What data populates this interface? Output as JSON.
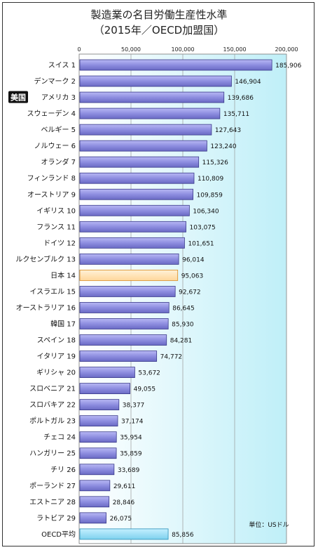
{
  "chart_data": {
    "type": "bar",
    "orientation": "horizontal",
    "title": "製造業の名目労働生産性水準",
    "subtitle": "（2015年／OECD加盟国）",
    "unit_label": "単位：USドル",
    "xlim": [
      0,
      200000
    ],
    "x_ticks": [
      {
        "value": 0,
        "label": "0"
      },
      {
        "value": 50000,
        "label": "50,000"
      },
      {
        "value": 100000,
        "label": "100,000"
      },
      {
        "value": 150000,
        "label": "150,000"
      },
      {
        "value": 200000,
        "label": "200,000"
      }
    ],
    "grid": true,
    "highlight_badge": {
      "label": "美国",
      "category_index": 2
    },
    "categories": [
      {
        "label": "スイス 1",
        "value": 185906,
        "value_label": "185,906",
        "style": "normal"
      },
      {
        "label": "デンマーク 2",
        "value": 146904,
        "value_label": "146,904",
        "style": "normal"
      },
      {
        "label": "アメリカ 3",
        "value": 139686,
        "value_label": "139,686",
        "style": "normal"
      },
      {
        "label": "スウェーデン 4",
        "value": 135711,
        "value_label": "135,711",
        "style": "normal"
      },
      {
        "label": "ベルギー 5",
        "value": 127643,
        "value_label": "127,643",
        "style": "normal"
      },
      {
        "label": "ノルウェー 6",
        "value": 123240,
        "value_label": "123,240",
        "style": "normal"
      },
      {
        "label": "オランダ 7",
        "value": 115326,
        "value_label": "115,326",
        "style": "normal"
      },
      {
        "label": "フィンランド 8",
        "value": 110809,
        "value_label": "110,809",
        "style": "normal"
      },
      {
        "label": "オーストリア 9",
        "value": 109859,
        "value_label": "109,859",
        "style": "normal"
      },
      {
        "label": "イギリス 10",
        "value": 106340,
        "value_label": "106,340",
        "style": "normal"
      },
      {
        "label": "フランス 11",
        "value": 103075,
        "value_label": "103,075",
        "style": "normal"
      },
      {
        "label": "ドイツ 12",
        "value": 101651,
        "value_label": "101,651",
        "style": "normal"
      },
      {
        "label": "ルクセンブルク 13",
        "value": 96014,
        "value_label": "96,014",
        "style": "normal"
      },
      {
        "label": "日本 14",
        "value": 95063,
        "value_label": "95,063",
        "style": "japan"
      },
      {
        "label": "イスラエル 15",
        "value": 92672,
        "value_label": "92,672",
        "style": "normal"
      },
      {
        "label": "オーストラリア 16",
        "value": 86645,
        "value_label": "86,645",
        "style": "normal"
      },
      {
        "label": "韓国 17",
        "value": 85930,
        "value_label": "85,930",
        "style": "normal"
      },
      {
        "label": "スペイン 18",
        "value": 84281,
        "value_label": "84,281",
        "style": "normal"
      },
      {
        "label": "イタリア 19",
        "value": 74772,
        "value_label": "74,772",
        "style": "normal"
      },
      {
        "label": "ギリシャ 20",
        "value": 53672,
        "value_label": "53,672",
        "style": "normal"
      },
      {
        "label": "スロベニア 21",
        "value": 49055,
        "value_label": "49,055",
        "style": "normal"
      },
      {
        "label": "スロバキア 22",
        "value": 38377,
        "value_label": "38,377",
        "style": "normal"
      },
      {
        "label": "ポルトガル 23",
        "value": 37174,
        "value_label": "37,174",
        "style": "normal"
      },
      {
        "label": "チェコ 24",
        "value": 35954,
        "value_label": "35,954",
        "style": "normal"
      },
      {
        "label": "ハンガリー 25",
        "value": 35859,
        "value_label": "35,859",
        "style": "normal"
      },
      {
        "label": "チリ 26",
        "value": 33689,
        "value_label": "33,689",
        "style": "normal"
      },
      {
        "label": "ポーランド 27",
        "value": 29611,
        "value_label": "29,611",
        "style": "normal"
      },
      {
        "label": "エストニア 28",
        "value": 28846,
        "value_label": "28,846",
        "style": "normal"
      },
      {
        "label": "ラトビア 29",
        "value": 26075,
        "value_label": "26,075",
        "style": "normal"
      },
      {
        "label": "OECD平均",
        "value": 85856,
        "value_label": "85,856",
        "style": "oecd"
      }
    ],
    "colors": {
      "bar": "#8e8ee0",
      "bar_edge": "#3a3a8a",
      "japan_bar": "#ffd69a",
      "japan_edge": "#d98a20",
      "oecd_bar": "#7ed2ee",
      "oecd_edge": "#2a8fb8",
      "plot_bg_left": "#ffffff",
      "plot_bg_right": "#bfeff8",
      "badge_bg": "#111111"
    }
  }
}
